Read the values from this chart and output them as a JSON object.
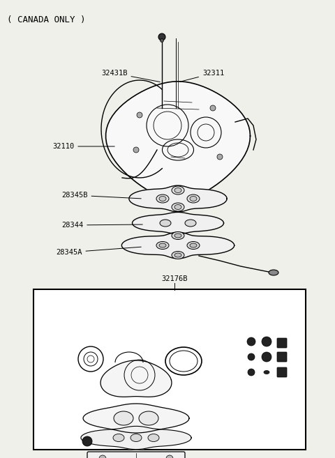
{
  "bg_color": "#ffffff",
  "fig_bg": "#f0f0eb",
  "title_text": "( CANADA ONLY )",
  "label_32431B": "32431B",
  "label_32311": "32311",
  "label_32110": "32110",
  "label_28345B": "28345B",
  "label_28344": "28344",
  "label_28345A": "28345A",
  "label_32176B": "32176B",
  "font_size": 7.5,
  "title_font_size": 9,
  "line_color": "#000000",
  "box_color": "#000000",
  "bg_white": "#ffffff"
}
